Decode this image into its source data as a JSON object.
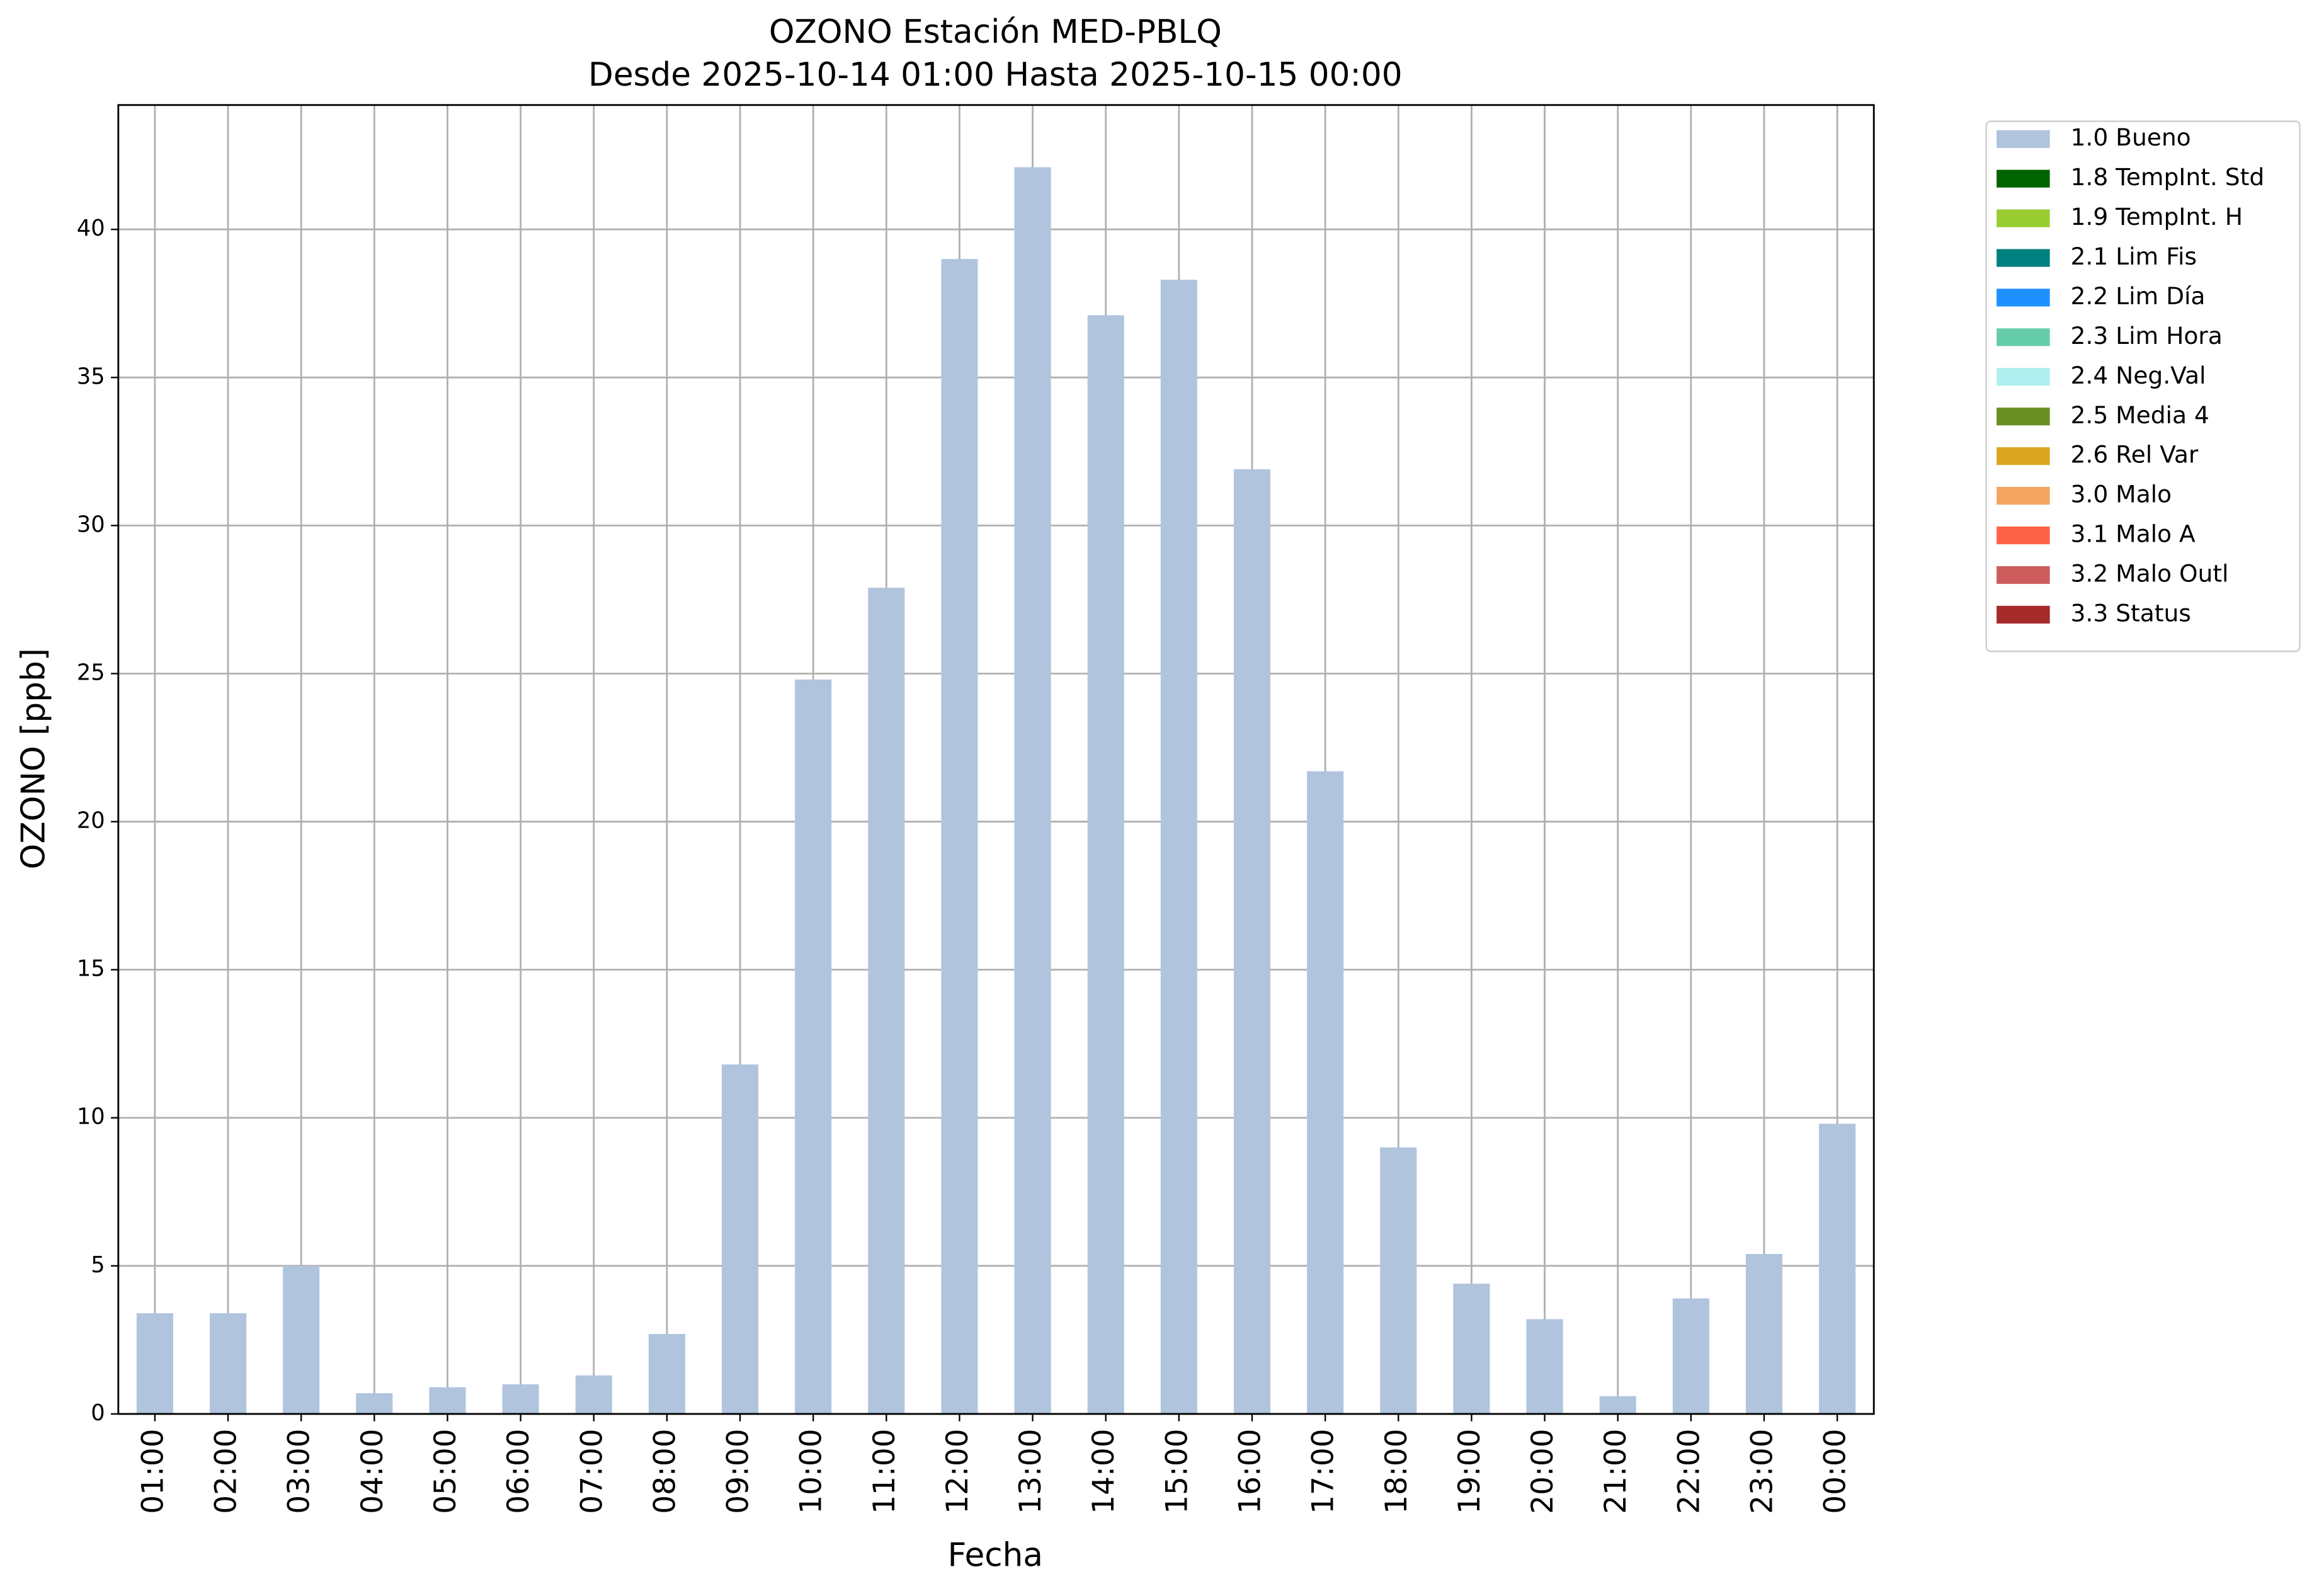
{
  "chart_data": {
    "type": "bar",
    "title": "OZONO Estación MED-PBLQ",
    "subtitle": "Desde 2025-10-14 01:00 Hasta 2025-10-15 00:00",
    "x_label": "Fecha",
    "y_label": "OZONO [ppb]",
    "categories": [
      "01:00",
      "02:00",
      "03:00",
      "04:00",
      "05:00",
      "06:00",
      "07:00",
      "08:00",
      "09:00",
      "10:00",
      "11:00",
      "12:00",
      "13:00",
      "14:00",
      "15:00",
      "16:00",
      "17:00",
      "18:00",
      "19:00",
      "20:00",
      "21:00",
      "22:00",
      "23:00",
      "00:00"
    ],
    "series": [
      {
        "name": "1.0 Bueno",
        "color": "#b0c4de",
        "values": [
          3.4,
          3.4,
          5.0,
          0.7,
          0.9,
          1.0,
          1.3,
          2.7,
          11.8,
          24.8,
          27.9,
          39.0,
          42.1,
          37.1,
          38.3,
          31.9,
          21.7,
          9.0,
          4.4,
          3.2,
          0.6,
          3.9,
          5.4,
          9.8
        ]
      },
      {
        "name": "1.8 TempInt. Std",
        "color": "#006400"
      },
      {
        "name": "1.9 TempInt. H",
        "color": "#9acd32"
      },
      {
        "name": "2.1 Lim Fis",
        "color": "#008080"
      },
      {
        "name": "2.2 Lim Día",
        "color": "#1e90ff"
      },
      {
        "name": "2.3 Lim Hora",
        "color": "#66cdaa"
      },
      {
        "name": "2.4 Neg.Val",
        "color": "#afeeee"
      },
      {
        "name": "2.5 Media 4",
        "color": "#6b8e23"
      },
      {
        "name": "2.6 Rel Var",
        "color": "#daa520"
      },
      {
        "name": "3.0 Malo",
        "color": "#f4a460"
      },
      {
        "name": "3.1 Malo A",
        "color": "#ff6347"
      },
      {
        "name": "3.2 Malo Outl",
        "color": "#cd5c5c"
      },
      {
        "name": "3.3 Status",
        "color": "#a52a2a"
      }
    ],
    "ylim": [
      0,
      44.2
    ],
    "yticks": [
      0,
      5,
      10,
      15,
      20,
      25,
      30,
      35,
      40
    ],
    "grid": true,
    "legend": "outside-upper-right"
  }
}
